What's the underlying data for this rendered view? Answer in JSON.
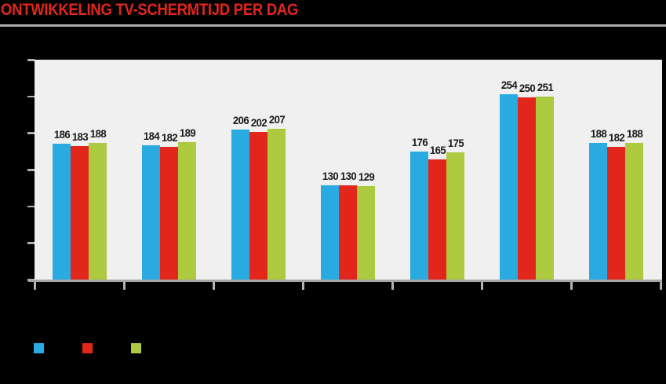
{
  "title": "ONTWIKKELING TV-SCHERMTIJD PER DAG",
  "colors": {
    "background": "#000000",
    "title": "#E2261C",
    "rule": "#ABABAB",
    "plot_bg": "#F0F0F0",
    "axis": "#A6A6A6",
    "tick": "#B3B3B3",
    "value_label": "#1A1A1A",
    "series_blue": "#29ABE2",
    "series_red": "#E2261C",
    "series_green": "#ADC93F"
  },
  "chart_data": {
    "type": "bar",
    "title": "ONTWIKKELING TV-SCHERMTIJD PER DAG",
    "categories": [
      "",
      "",
      "",
      "",
      "",
      "",
      ""
    ],
    "series": [
      {
        "name": "blue",
        "color": "#29ABE2",
        "values": [
          186,
          184,
          206,
          130,
          176,
          254,
          188
        ]
      },
      {
        "name": "red",
        "color": "#E2261C",
        "values": [
          183,
          182,
          202,
          130,
          165,
          250,
          182
        ]
      },
      {
        "name": "green",
        "color": "#ADC93F",
        "values": [
          188,
          189,
          207,
          129,
          175,
          251,
          188
        ]
      }
    ],
    "value_labels_shown": true,
    "ylim": [
      0,
      300
    ],
    "yticks": [
      0,
      50,
      100,
      150,
      200,
      250,
      300
    ],
    "ytick_labels_visible": false,
    "xtick_labels_visible": false,
    "grid": false,
    "legend_position": "bottom-left",
    "legend_labels_visible": false
  },
  "legend": {
    "swatches": [
      {
        "name": "blue-series-swatch",
        "color": "#29ABE2"
      },
      {
        "name": "red-series-swatch",
        "color": "#E2261C"
      },
      {
        "name": "green-series-swatch",
        "color": "#ADC93F"
      }
    ]
  }
}
